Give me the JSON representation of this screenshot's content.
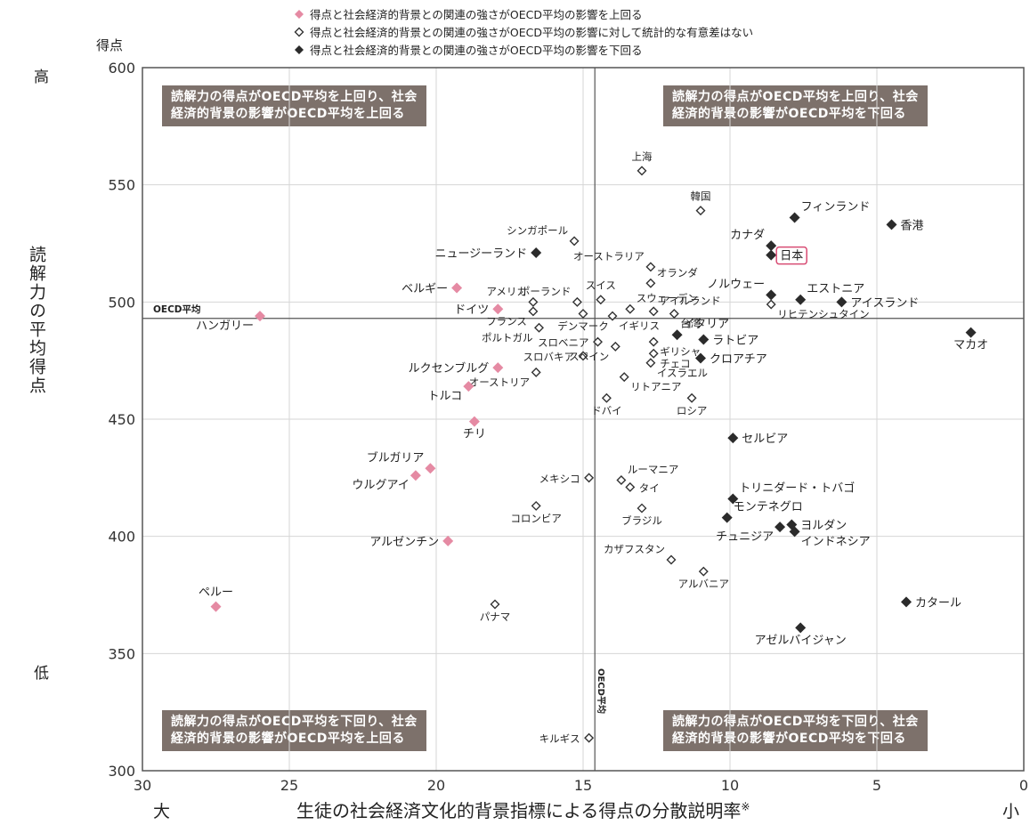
{
  "chart_data": {
    "type": "scatter",
    "ylabel": "読解力の平均得点",
    "ylabel_unit": "得点",
    "y_high": "高",
    "y_low": "低",
    "xlabel": "生徒の社会経済文化的背景指標による得点の分散説明率",
    "xlabel_mark": "※",
    "x_left": "大",
    "x_right": "小",
    "xlim": [
      30,
      0
    ],
    "ylim": [
      300,
      600
    ],
    "x_ticks": [
      "30",
      "25",
      "20",
      "15",
      "10",
      "5",
      "0"
    ],
    "y_ticks": [
      "600",
      "550",
      "500",
      "450",
      "400",
      "350",
      "300"
    ],
    "oecd_avg": {
      "x": 14.6,
      "y": 493,
      "label_h": "OECD平均",
      "label_v": "OECD平均"
    },
    "legend": [
      {
        "key": "above",
        "label": "得点と社会経済的背景との関連の強さがOECD平均の影響を上回る",
        "color": "#e58aa3"
      },
      {
        "key": "nodiff",
        "label": "得点と社会経済的背景との関連の強さがOECD平均の影響に対して統計的な有意差はない",
        "color": "#ffffff"
      },
      {
        "key": "below",
        "label": "得点と社会経済的背景との関連の強さがOECD平均の影響を下回る",
        "color": "#2b2b2b"
      }
    ],
    "quadrants": {
      "tl": [
        "読解力の得点がOECD平均を上回り、社会",
        "経済的背景の影響がOECD平均を上回る"
      ],
      "tr": [
        "読解力の得点がOECD平均を上回り、社会",
        "経済的背景の影響がOECD平均を下回る"
      ],
      "bl": [
        "読解力の得点がOECD平均を下回り、社会",
        "経済的背景の影響がOECD平均を上回る"
      ],
      "br": [
        "読解力の得点がOECD平均を下回り、社会",
        "経済的背景の影響がOECD平均を下回る"
      ]
    },
    "points": [
      {
        "name": "上海",
        "x": 13.0,
        "y": 556,
        "cat": "nodiff",
        "pos": "t"
      },
      {
        "name": "韓国",
        "x": 11.0,
        "y": 539,
        "cat": "nodiff",
        "pos": "t"
      },
      {
        "name": "フィンランド",
        "x": 7.8,
        "y": 536,
        "cat": "below",
        "pos": "ne"
      },
      {
        "name": "香港",
        "x": 4.5,
        "y": 533,
        "cat": "below",
        "pos": "r"
      },
      {
        "name": "シンガポール",
        "x": 15.3,
        "y": 526,
        "cat": "nodiff",
        "pos": "nw"
      },
      {
        "name": "カナダ",
        "x": 8.6,
        "y": 524,
        "cat": "below",
        "pos": "nw"
      },
      {
        "name": "ニュージーランド",
        "x": 16.6,
        "y": 521,
        "cat": "below",
        "pos": "l"
      },
      {
        "name": "日本",
        "x": 8.6,
        "y": 520,
        "cat": "below",
        "pos": "r",
        "boxed": true
      },
      {
        "name": "オーストラリア",
        "x": 12.7,
        "y": 515,
        "cat": "nodiff",
        "pos": "nw"
      },
      {
        "name": "オランダ",
        "x": 12.7,
        "y": 508,
        "cat": "nodiff",
        "pos": "ne"
      },
      {
        "name": "ベルギー",
        "x": 19.3,
        "y": 506,
        "cat": "above",
        "pos": "l"
      },
      {
        "name": "ノルウェー",
        "x": 8.6,
        "y": 503,
        "cat": "below",
        "pos": "nw"
      },
      {
        "name": "エストニア",
        "x": 7.6,
        "y": 501,
        "cat": "below",
        "pos": "ne"
      },
      {
        "name": "アイスランド",
        "x": 6.2,
        "y": 500,
        "cat": "below",
        "pos": "r"
      },
      {
        "name": "スイス",
        "x": 14.4,
        "y": 501,
        "cat": "nodiff",
        "pos": "t"
      },
      {
        "name": "ポーランド",
        "x": 15.2,
        "y": 500,
        "cat": "nodiff",
        "pos": "nw"
      },
      {
        "name": "スウェーデン",
        "x": 13.4,
        "y": 497,
        "cat": "nodiff",
        "pos": "ne"
      },
      {
        "name": "アメリカ",
        "x": 16.7,
        "y": 500,
        "cat": "nodiff",
        "pos": "nw"
      },
      {
        "name": "ドイツ",
        "x": 17.9,
        "y": 497,
        "cat": "above",
        "pos": "l"
      },
      {
        "name": "アイルランド",
        "x": 12.6,
        "y": 496,
        "cat": "nodiff",
        "pos": "ne"
      },
      {
        "name": "リヒテンシュタイン",
        "x": 8.6,
        "y": 499,
        "cat": "nodiff",
        "pos": "se"
      },
      {
        "name": "フランス",
        "x": 16.7,
        "y": 496,
        "cat": "nodiff",
        "pos": "sw"
      },
      {
        "name": "台湾",
        "x": 11.9,
        "y": 495,
        "cat": "nodiff",
        "pos": "se"
      },
      {
        "name": "デンマーク",
        "x": 15.0,
        "y": 495,
        "cat": "nodiff",
        "pos": "s"
      },
      {
        "name": "イギリス",
        "x": 14.0,
        "y": 494,
        "cat": "nodiff",
        "pos": "se"
      },
      {
        "name": "ハンガリー",
        "x": 26.0,
        "y": 494,
        "cat": "above",
        "pos": "sw"
      },
      {
        "name": "ポルトガル",
        "x": 16.5,
        "y": 489,
        "cat": "nodiff",
        "pos": "sw"
      },
      {
        "name": "イタリア",
        "x": 11.8,
        "y": 486,
        "cat": "below",
        "pos": "ne"
      },
      {
        "name": "マカオ",
        "x": 1.8,
        "y": 487,
        "cat": "below",
        "pos": "s"
      },
      {
        "name": "ラトビア",
        "x": 10.9,
        "y": 484,
        "cat": "below",
        "pos": "r"
      },
      {
        "name": "スロベニア",
        "x": 14.5,
        "y": 483,
        "cat": "nodiff",
        "pos": "l"
      },
      {
        "name": "ギリシャ",
        "x": 12.6,
        "y": 483,
        "cat": "nodiff",
        "pos": "se"
      },
      {
        "name": "スロバキア",
        "x": 15.0,
        "y": 477,
        "cat": "nodiff",
        "pos": "l"
      },
      {
        "name": "スペイン",
        "x": 13.9,
        "y": 481,
        "cat": "nodiff",
        "pos": "sw"
      },
      {
        "name": "チェコ",
        "x": 12.6,
        "y": 478,
        "cat": "nodiff",
        "pos": "se"
      },
      {
        "name": "クロアチア",
        "x": 11.0,
        "y": 476,
        "cat": "below",
        "pos": "r"
      },
      {
        "name": "ルクセンブルグ",
        "x": 17.9,
        "y": 472,
        "cat": "above",
        "pos": "l"
      },
      {
        "name": "オーストリア",
        "x": 16.6,
        "y": 470,
        "cat": "nodiff",
        "pos": "sw"
      },
      {
        "name": "イスラエル",
        "x": 12.7,
        "y": 474,
        "cat": "nodiff",
        "pos": "se"
      },
      {
        "name": "リトアニア",
        "x": 13.6,
        "y": 468,
        "cat": "nodiff",
        "pos": "se"
      },
      {
        "name": "トルコ",
        "x": 18.9,
        "y": 464,
        "cat": "above",
        "pos": "sw"
      },
      {
        "name": "ドバイ",
        "x": 14.2,
        "y": 459,
        "cat": "nodiff",
        "pos": "s"
      },
      {
        "name": "ロシア",
        "x": 11.3,
        "y": 459,
        "cat": "nodiff",
        "pos": "s"
      },
      {
        "name": "チリ",
        "x": 18.7,
        "y": 449,
        "cat": "above",
        "pos": "s"
      },
      {
        "name": "セルビア",
        "x": 9.9,
        "y": 442,
        "cat": "below",
        "pos": "r"
      },
      {
        "name": "ブルガリア",
        "x": 20.2,
        "y": 429,
        "cat": "above",
        "pos": "nw"
      },
      {
        "name": "ウルグアイ",
        "x": 20.7,
        "y": 426,
        "cat": "above",
        "pos": "sw"
      },
      {
        "name": "メキシコ",
        "x": 14.8,
        "y": 425,
        "cat": "nodiff",
        "pos": "l"
      },
      {
        "name": "ルーマニア",
        "x": 13.7,
        "y": 424,
        "cat": "nodiff",
        "pos": "ne"
      },
      {
        "name": "タイ",
        "x": 13.4,
        "y": 421,
        "cat": "nodiff",
        "pos": "r"
      },
      {
        "name": "トリニダード・トバゴ",
        "x": 9.9,
        "y": 416,
        "cat": "below",
        "pos": "ne"
      },
      {
        "name": "コロンビア",
        "x": 16.6,
        "y": 413,
        "cat": "nodiff",
        "pos": "s"
      },
      {
        "name": "ブラジル",
        "x": 13.0,
        "y": 412,
        "cat": "nodiff",
        "pos": "s"
      },
      {
        "name": "モンテネグロ",
        "x": 10.1,
        "y": 408,
        "cat": "below",
        "pos": "ne"
      },
      {
        "name": "ヨルダン",
        "x": 7.9,
        "y": 405,
        "cat": "below",
        "pos": "r"
      },
      {
        "name": "チュニジア",
        "x": 8.3,
        "y": 404,
        "cat": "below",
        "pos": "sw"
      },
      {
        "name": "インドネシア",
        "x": 7.8,
        "y": 402,
        "cat": "below",
        "pos": "se"
      },
      {
        "name": "アルゼンチン",
        "x": 19.6,
        "y": 398,
        "cat": "above",
        "pos": "l"
      },
      {
        "name": "カザフスタン",
        "x": 12.0,
        "y": 390,
        "cat": "nodiff",
        "pos": "nw"
      },
      {
        "name": "アルバニア",
        "x": 10.9,
        "y": 385,
        "cat": "nodiff",
        "pos": "s"
      },
      {
        "name": "カタール",
        "x": 4.0,
        "y": 372,
        "cat": "below",
        "pos": "r"
      },
      {
        "name": "ペルー",
        "x": 27.5,
        "y": 370,
        "cat": "above",
        "pos": "n"
      },
      {
        "name": "パナマ",
        "x": 18.0,
        "y": 371,
        "cat": "nodiff",
        "pos": "s"
      },
      {
        "name": "アゼルバイジャン",
        "x": 7.6,
        "y": 361,
        "cat": "below",
        "pos": "s"
      },
      {
        "name": "キルギス",
        "x": 14.8,
        "y": 314,
        "cat": "nodiff",
        "pos": "l"
      }
    ]
  }
}
